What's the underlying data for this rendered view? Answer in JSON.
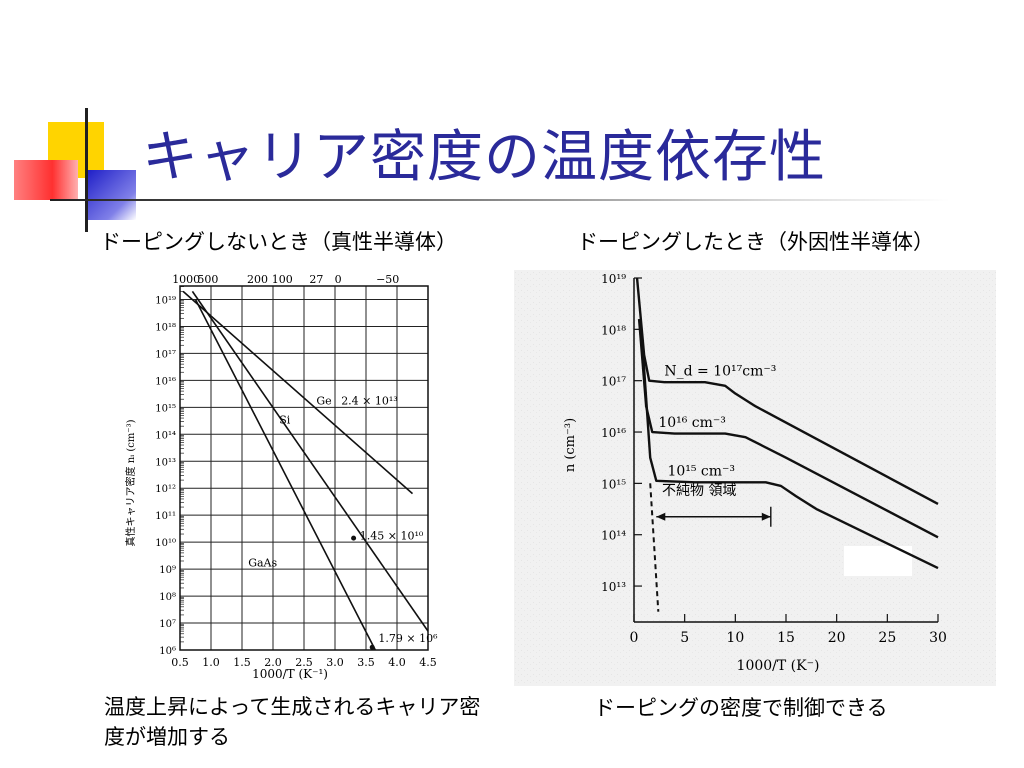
{
  "slide": {
    "title": "キャリア密度の温度依存性",
    "caption_left_top": "ドーピングしないとき（真性半導体）",
    "caption_right_top": "ドーピングしたとき（外因性半導体）",
    "caption_left_bottom": "温度上昇によって生成されるキャリア密度が増加する",
    "caption_right_bottom": "ドーピングの密度で制御できる"
  },
  "colors": {
    "title": "#2a2a9a",
    "deco_yellow": "#ffd400",
    "deco_blue": "#3a3ad0",
    "deco_red": "#ff5a5a"
  },
  "chart_data": [
    {
      "type": "line",
      "xlabel": "1000/T (K⁻¹)",
      "ylabel": "真性キャリア密度  nᵢ (cm⁻³)",
      "x_ticks": [
        "0.5",
        "1.0",
        "1.5",
        "2.0",
        "2.5",
        "3.0",
        "3.5",
        "4.0",
        "4.5"
      ],
      "x_top_ticks": [
        "1000",
        "500",
        "200",
        "100",
        "27",
        "0",
        "−50"
      ],
      "y_ticks": [
        "10⁶",
        "10⁷",
        "10⁸",
        "10⁹",
        "10¹⁰",
        "10¹¹",
        "10¹²",
        "10¹³",
        "10¹⁴",
        "10¹⁵",
        "10¹⁶",
        "10¹⁷",
        "10¹⁸",
        "10¹⁹"
      ],
      "xlim": [
        0.5,
        4.5
      ],
      "ylim_log10": [
        6,
        19.5
      ],
      "grid": true,
      "series": [
        {
          "name": "Ge",
          "x": [
            0.55,
            4.25
          ],
          "log10_y": [
            19.3,
            11.8
          ],
          "annotation": "2.4 × 10¹³"
        },
        {
          "name": "Si",
          "x": [
            0.7,
            4.5
          ],
          "log10_y": [
            19.3,
            6.7
          ],
          "annotation": "1.45 × 10¹⁰"
        },
        {
          "name": "GaAs",
          "x": [
            0.75,
            3.65
          ],
          "log10_y": [
            19.0,
            6.0
          ],
          "annotation": "1.79 × 10⁶"
        }
      ]
    },
    {
      "type": "line",
      "xlabel": "1000/T (K⁻)",
      "ylabel": "n (cm⁻³)",
      "x_ticks": [
        "0",
        "5",
        "10",
        "15",
        "20",
        "25",
        "30"
      ],
      "y_ticks": [
        "10¹³",
        "10¹⁴",
        "10¹⁵",
        "10¹⁶",
        "10¹⁷",
        "10¹⁸",
        "10¹⁹"
      ],
      "xlim": [
        0,
        30
      ],
      "ylim_log10": [
        12.3,
        19
      ],
      "grid": false,
      "annotation_region": "不純物 領域",
      "series": [
        {
          "name": "N_d = 10¹⁷cm⁻³",
          "x": [
            0.3,
            1.0,
            1.5,
            3,
            7,
            9,
            10,
            12,
            30
          ],
          "log10_y": [
            19,
            17.5,
            17.0,
            16.97,
            16.97,
            16.9,
            16.75,
            16.5,
            14.6
          ]
        },
        {
          "name": "10¹⁶ cm⁻³",
          "x": [
            0.5,
            1.2,
            1.8,
            4,
            9,
            11,
            12.5,
            15,
            30
          ],
          "log10_y": [
            18.2,
            16.5,
            16.0,
            15.97,
            15.97,
            15.9,
            15.75,
            15.5,
            13.95
          ]
        },
        {
          "name": "10¹⁵ cm⁻³",
          "x": [
            0.8,
            1.6,
            2.2,
            6,
            13,
            14.5,
            16,
            18,
            30
          ],
          "log10_y": [
            17.8,
            15.5,
            15.05,
            15.02,
            15.02,
            14.95,
            14.75,
            14.5,
            13.35
          ]
        }
      ]
    }
  ]
}
